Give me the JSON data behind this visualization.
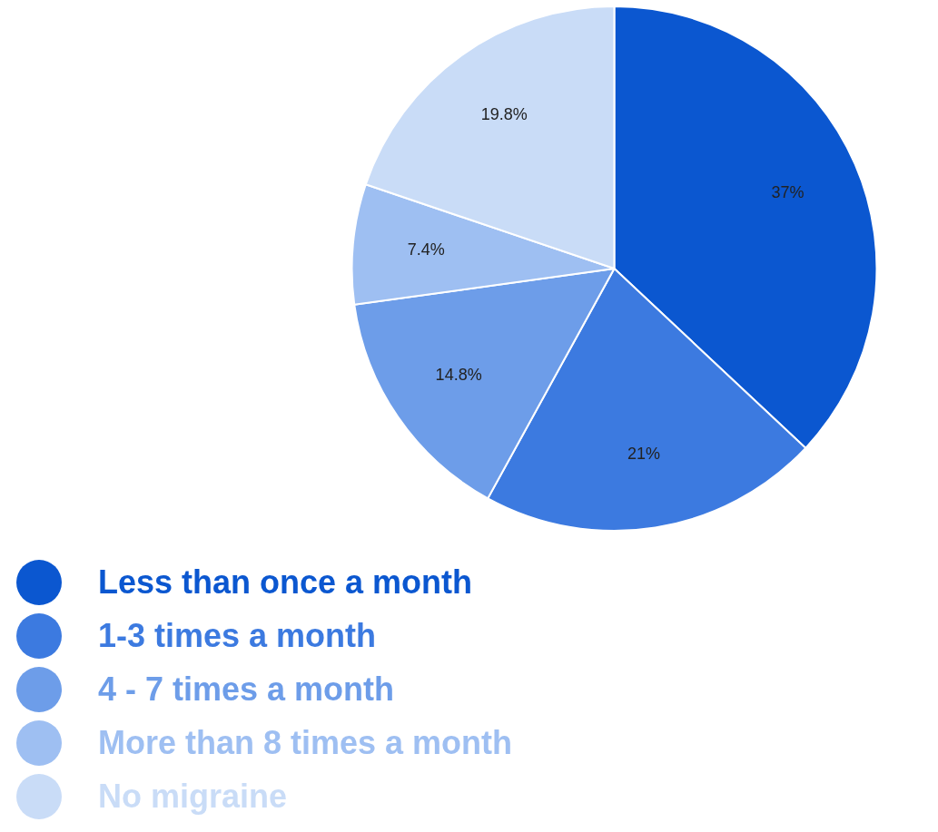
{
  "chart_data": {
    "type": "pie",
    "categories": [
      "Less than once a month",
      "1-3 times a month",
      "4 - 7 times a month",
      "More than 8 times a month",
      "No migraine"
    ],
    "values": [
      37,
      21,
      14.8,
      7.4,
      19.8
    ],
    "value_labels": [
      "37%",
      "21%",
      "14.8%",
      "7.4%",
      "19.8%"
    ],
    "colors": [
      "#0b57d0",
      "#3c7ae0",
      "#6d9de9",
      "#9ebff2",
      "#c9dcf7"
    ],
    "legend": "bottom"
  }
}
